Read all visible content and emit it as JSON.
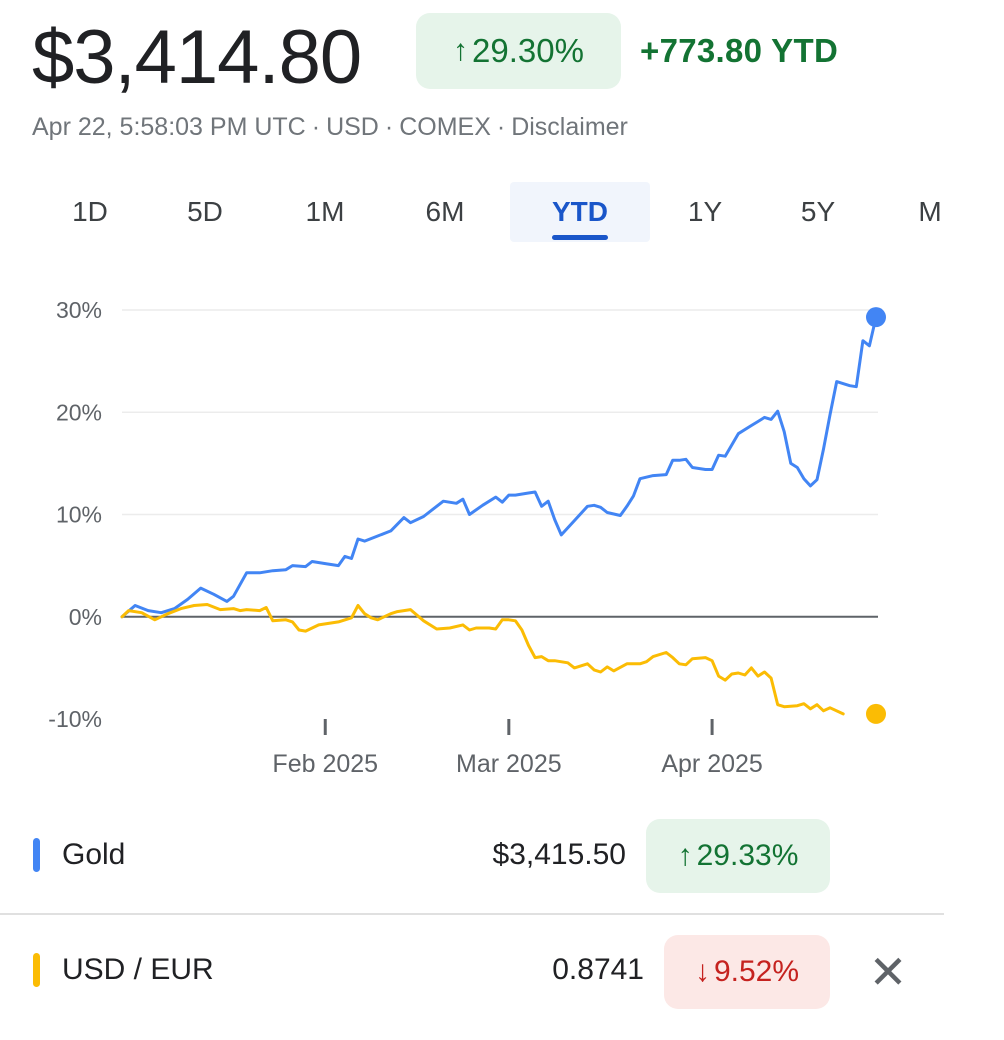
{
  "header": {
    "price": "$3,414.80",
    "change_arrow": "↑",
    "change_percent": "29.30%",
    "ytd_change": "+773.80 YTD",
    "meta": {
      "timestamp": "Apr 22, 5:58:03 PM UTC",
      "currency": "USD",
      "exchange": "COMEX",
      "disclaimer": "Disclaimer"
    }
  },
  "tabs": [
    "1D",
    "5D",
    "1M",
    "6M",
    "YTD",
    "1Y",
    "5Y",
    "M"
  ],
  "active_tab": "YTD",
  "colors": {
    "gold": "#4285f4",
    "usd_eur": "#fbbc04",
    "up": "#137333",
    "down": "#c5221f"
  },
  "chart_data": {
    "type": "line",
    "ylim": [
      -10,
      30
    ],
    "yticks": [
      "30%",
      "20%",
      "10%",
      "0%",
      "-10%"
    ],
    "xtick_labels": [
      {
        "label": "Feb 2025",
        "day": 31
      },
      {
        "label": "Mar 2025",
        "day": 59
      },
      {
        "label": "Apr 2025",
        "day": 90
      }
    ],
    "x_range_days": [
      0,
      112
    ],
    "series": [
      {
        "name": "Gold",
        "color": "#4285f4",
        "points": [
          [
            0,
            0
          ],
          [
            2,
            1.1
          ],
          [
            4,
            0.6
          ],
          [
            6,
            0.4
          ],
          [
            8,
            0.8
          ],
          [
            10,
            1.7
          ],
          [
            12,
            2.8
          ],
          [
            14,
            2.2
          ],
          [
            16,
            1.5
          ],
          [
            17,
            2.0
          ],
          [
            19,
            4.3
          ],
          [
            21,
            4.3
          ],
          [
            23,
            4.5
          ],
          [
            25,
            4.6
          ],
          [
            26,
            5.0
          ],
          [
            28,
            4.9
          ],
          [
            29,
            5.4
          ],
          [
            31,
            5.2
          ],
          [
            33,
            5.0
          ],
          [
            34,
            5.9
          ],
          [
            35,
            5.7
          ],
          [
            36,
            7.6
          ],
          [
            37,
            7.4
          ],
          [
            39,
            7.9
          ],
          [
            41,
            8.4
          ],
          [
            43,
            9.7
          ],
          [
            44,
            9.2
          ],
          [
            46,
            9.8
          ],
          [
            48,
            10.8
          ],
          [
            49,
            11.3
          ],
          [
            51,
            11.1
          ],
          [
            52,
            11.5
          ],
          [
            53,
            10.0
          ],
          [
            55,
            10.9
          ],
          [
            57,
            11.7
          ],
          [
            58,
            11.2
          ],
          [
            59,
            11.9
          ],
          [
            60,
            11.9
          ],
          [
            62,
            12.1
          ],
          [
            63,
            12.2
          ],
          [
            64,
            10.8
          ],
          [
            65,
            11.3
          ],
          [
            66,
            9.5
          ],
          [
            67,
            8.0
          ],
          [
            69,
            9.4
          ],
          [
            71,
            10.8
          ],
          [
            72,
            10.9
          ],
          [
            73,
            10.7
          ],
          [
            74,
            10.2
          ],
          [
            76,
            9.9
          ],
          [
            77,
            10.8
          ],
          [
            78,
            11.8
          ],
          [
            79,
            13.5
          ],
          [
            81,
            13.8
          ],
          [
            83,
            13.9
          ],
          [
            84,
            15.3
          ],
          [
            85,
            15.3
          ],
          [
            86,
            15.4
          ],
          [
            87,
            14.6
          ],
          [
            89,
            14.4
          ],
          [
            90,
            14.4
          ],
          [
            91,
            15.8
          ],
          [
            92,
            15.7
          ],
          [
            94,
            17.9
          ],
          [
            96,
            18.7
          ],
          [
            97,
            19.1
          ],
          [
            98,
            19.5
          ],
          [
            99,
            19.3
          ],
          [
            100,
            20.1
          ],
          [
            101,
            18.1
          ],
          [
            102,
            15.0
          ],
          [
            103,
            14.6
          ],
          [
            104,
            13.5
          ],
          [
            105,
            12.8
          ],
          [
            106,
            13.4
          ],
          [
            107,
            16.4
          ],
          [
            108,
            19.8
          ],
          [
            109,
            23.0
          ],
          [
            111,
            22.6
          ],
          [
            112,
            22.5
          ],
          [
            113,
            27.0
          ],
          [
            114,
            26.5
          ],
          [
            115,
            29.3
          ]
        ]
      },
      {
        "name": "USD / EUR",
        "color": "#fbbc04",
        "points": [
          [
            0,
            0
          ],
          [
            1,
            0.6
          ],
          [
            3,
            0.4
          ],
          [
            5,
            -0.3
          ],
          [
            7,
            0.3
          ],
          [
            9,
            0.8
          ],
          [
            11,
            1.1
          ],
          [
            13,
            1.2
          ],
          [
            15,
            0.7
          ],
          [
            17,
            0.8
          ],
          [
            18,
            0.6
          ],
          [
            19,
            0.7
          ],
          [
            21,
            0.6
          ],
          [
            22,
            0.9
          ],
          [
            23,
            -0.4
          ],
          [
            25,
            -0.3
          ],
          [
            26,
            -0.5
          ],
          [
            27,
            -1.3
          ],
          [
            28,
            -1.4
          ],
          [
            30,
            -0.8
          ],
          [
            32,
            -0.6
          ],
          [
            33,
            -0.5
          ],
          [
            35,
            -0.1
          ],
          [
            36,
            1.1
          ],
          [
            37,
            0.3
          ],
          [
            38,
            -0.1
          ],
          [
            39,
            -0.3
          ],
          [
            41,
            0.3
          ],
          [
            42,
            0.5
          ],
          [
            44,
            0.7
          ],
          [
            46,
            -0.4
          ],
          [
            48,
            -1.2
          ],
          [
            50,
            -1.1
          ],
          [
            52,
            -0.8
          ],
          [
            53,
            -1.3
          ],
          [
            54,
            -1.1
          ],
          [
            56,
            -1.1
          ],
          [
            57,
            -1.2
          ],
          [
            58,
            -0.3
          ],
          [
            59,
            -0.3
          ],
          [
            60,
            -0.4
          ],
          [
            61,
            -1.3
          ],
          [
            62,
            -2.8
          ],
          [
            63,
            -4.0
          ],
          [
            64,
            -3.9
          ],
          [
            65,
            -4.3
          ],
          [
            66,
            -4.3
          ],
          [
            68,
            -4.5
          ],
          [
            69,
            -5.0
          ],
          [
            71,
            -4.6
          ],
          [
            72,
            -5.2
          ],
          [
            73,
            -5.4
          ],
          [
            74,
            -4.9
          ],
          [
            75,
            -5.3
          ],
          [
            77,
            -4.6
          ],
          [
            79,
            -4.6
          ],
          [
            80,
            -4.4
          ],
          [
            81,
            -3.9
          ],
          [
            83,
            -3.5
          ],
          [
            84,
            -4.0
          ],
          [
            85,
            -4.6
          ],
          [
            86,
            -4.7
          ],
          [
            87,
            -4.1
          ],
          [
            89,
            -4.0
          ],
          [
            90,
            -4.3
          ],
          [
            91,
            -5.8
          ],
          [
            92,
            -6.2
          ],
          [
            93,
            -5.6
          ],
          [
            94,
            -5.5
          ],
          [
            95,
            -5.7
          ],
          [
            96,
            -5.0
          ],
          [
            97,
            -5.8
          ],
          [
            98,
            -5.4
          ],
          [
            99,
            -6.0
          ],
          [
            100,
            -8.6
          ],
          [
            101,
            -8.8
          ],
          [
            103,
            -8.7
          ],
          [
            104,
            -8.5
          ],
          [
            105,
            -9.0
          ],
          [
            106,
            -8.6
          ],
          [
            107,
            -9.2
          ],
          [
            108,
            -8.9
          ],
          [
            110,
            -9.5
          ]
        ]
      }
    ]
  },
  "comparisons": [
    {
      "name": "Gold",
      "value": "$3,415.50",
      "arrow": "↑",
      "percent": "29.33%"
    },
    {
      "name": "USD / EUR",
      "value": "0.8741",
      "arrow": "↓",
      "percent": "9.52%"
    }
  ],
  "close_label": "✕"
}
